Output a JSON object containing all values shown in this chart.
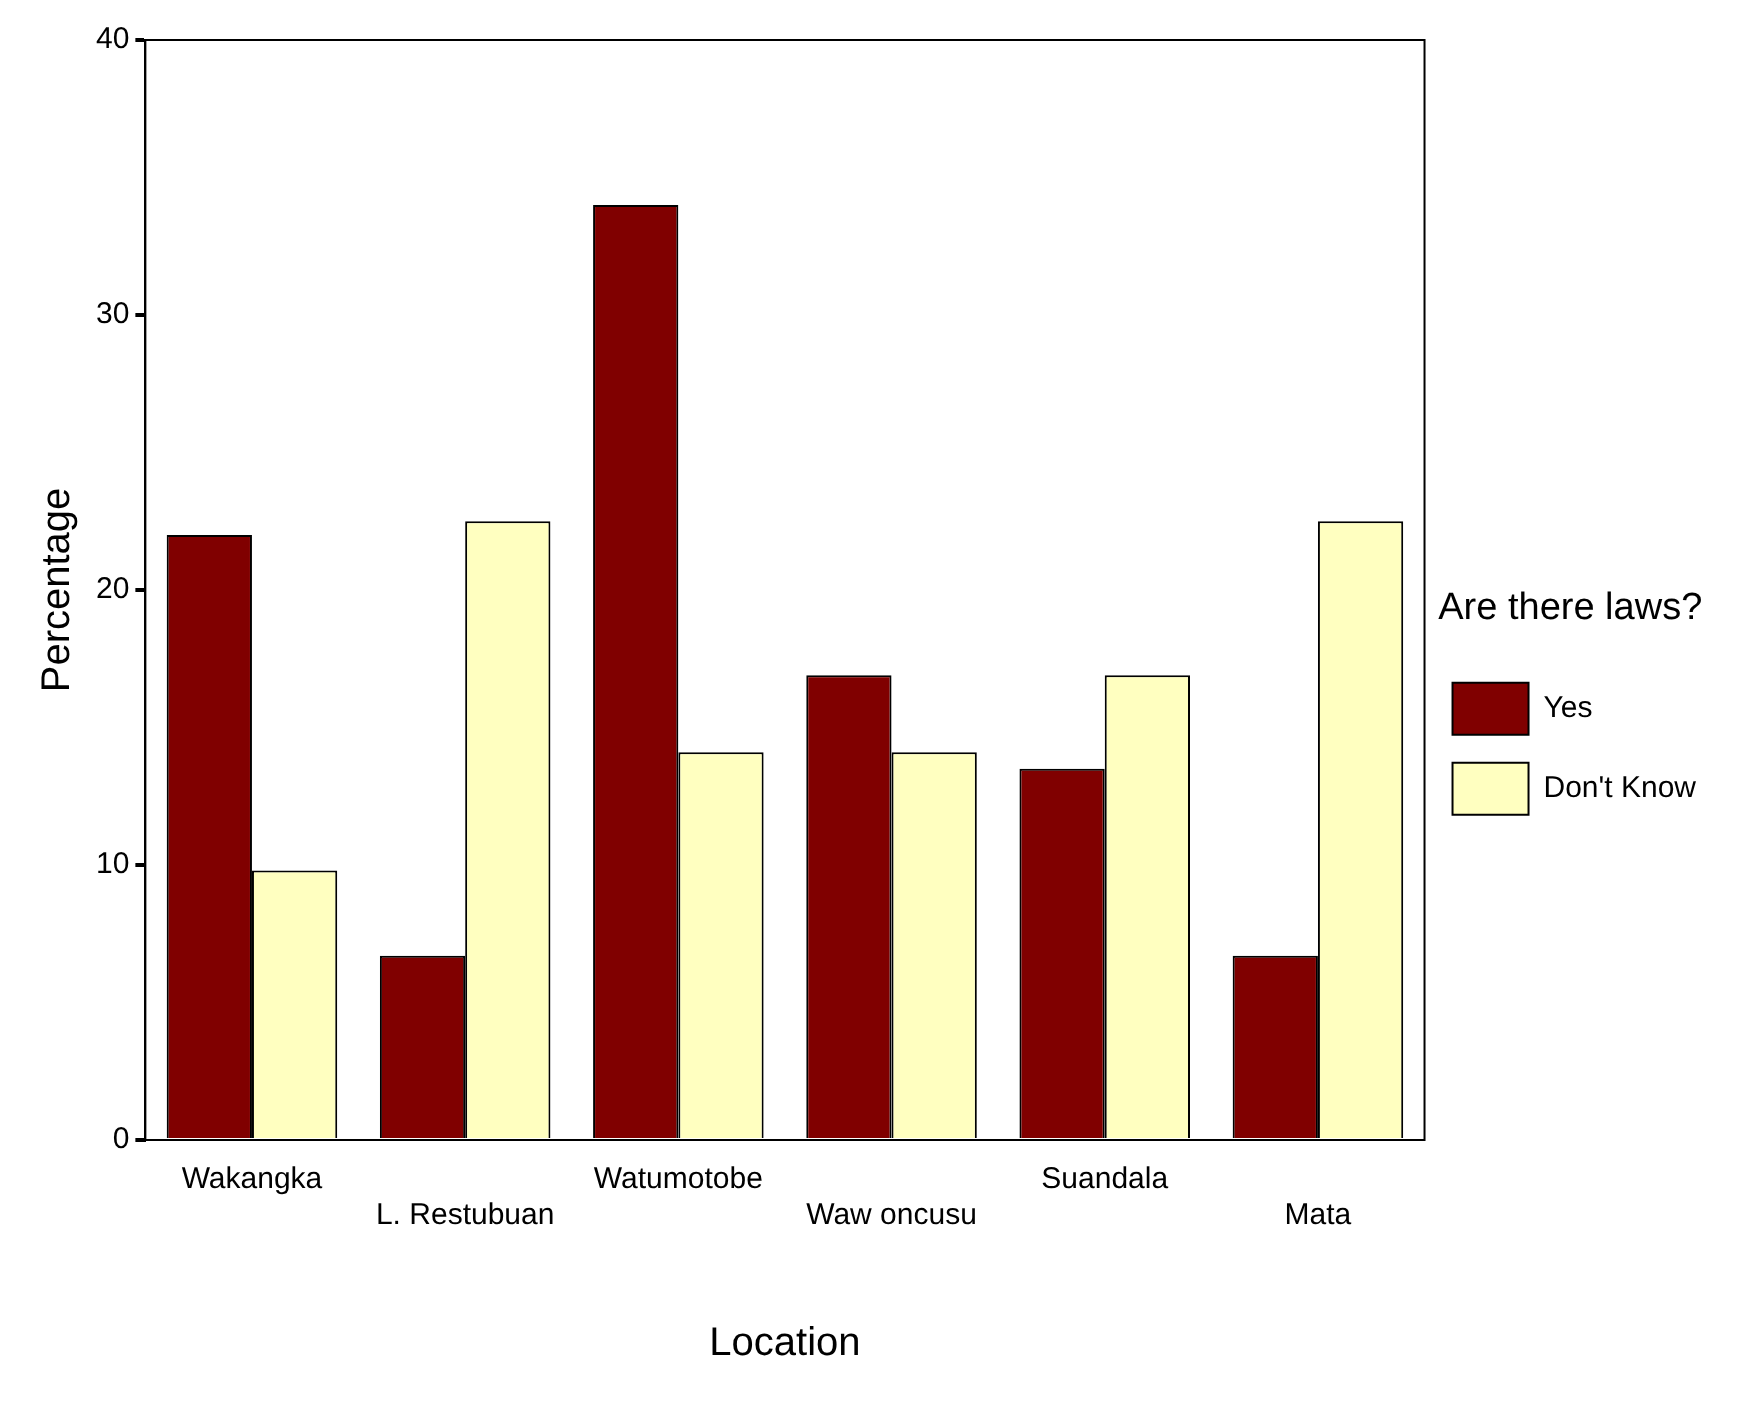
{
  "chart_data": {
    "type": "bar",
    "xlabel": "Location",
    "ylabel": "Percentage",
    "legend_title": "Are there laws?",
    "legend": "right",
    "categories": [
      "Wakangka",
      "L. Restubuan",
      "Watumotobe",
      "Waw oncusu",
      "Suandala",
      "Mata"
    ],
    "series": [
      {
        "name": "Yes",
        "color": "#800000",
        "values": [
          22,
          6.7,
          34,
          16.9,
          13.5,
          6.7
        ]
      },
      {
        "name": "Don't Know",
        "color": "#ffffc0",
        "values": [
          9.8,
          22.5,
          14.1,
          14.1,
          16.9,
          22.5
        ]
      }
    ],
    "ylim": [
      0,
      40
    ],
    "yticks": [
      0,
      10,
      20,
      30,
      40
    ]
  }
}
